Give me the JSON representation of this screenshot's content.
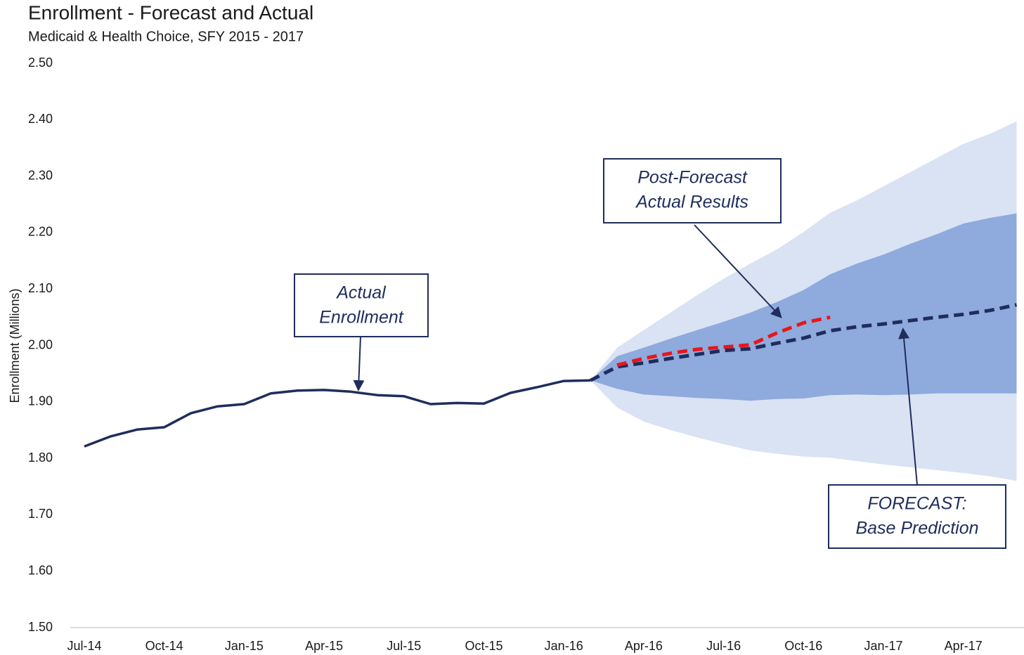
{
  "chart_data": {
    "type": "line",
    "title": "Enrollment - Forecast and Actual",
    "subtitle": "Medicaid & Health Choice, SFY 2015 - 2017",
    "ylabel": "Enrollment (Millions)",
    "categories": [
      "Jul-14",
      null,
      null,
      "Oct-14",
      null,
      null,
      "Jan-15",
      null,
      null,
      "Apr-15",
      null,
      null,
      "Jul-15",
      null,
      null,
      "Oct-15",
      null,
      null,
      "Jan-16",
      null,
      null,
      "Apr-16",
      null,
      null,
      "Jul-16",
      null,
      null,
      "Oct-16",
      null,
      null,
      "Jan-17",
      null,
      null,
      "Apr-17",
      null,
      null
    ],
    "ylim": [
      1.5,
      2.5
    ],
    "yticks": [
      {
        "value": 1.5,
        "label": "1.50"
      },
      {
        "value": 1.6,
        "label": "1.60"
      },
      {
        "value": 1.7,
        "label": "1.70"
      },
      {
        "value": 1.8,
        "label": "1.80"
      },
      {
        "value": 1.9,
        "label": "1.90"
      },
      {
        "value": 2.0,
        "label": "2.00"
      },
      {
        "value": 2.1,
        "label": "2.10"
      },
      {
        "value": 2.2,
        "label": "2.20"
      },
      {
        "value": 2.3,
        "label": "2.30"
      },
      {
        "value": 2.4,
        "label": "2.40"
      },
      {
        "value": 2.5,
        "label": "2.50"
      }
    ],
    "grid": false,
    "bands": [
      {
        "color": "#dae3f3",
        "upper": [
          null,
          null,
          null,
          null,
          null,
          null,
          null,
          null,
          null,
          null,
          null,
          null,
          null,
          null,
          null,
          null,
          null,
          null,
          null,
          1.938,
          1.996,
          2.027,
          2.058,
          2.089,
          2.118,
          2.145,
          2.17,
          2.201,
          2.235,
          2.257,
          2.282,
          2.307,
          2.332,
          2.357,
          2.375,
          2.397
        ],
        "lower": [
          null,
          null,
          null,
          null,
          null,
          null,
          null,
          null,
          null,
          null,
          null,
          null,
          null,
          null,
          null,
          null,
          null,
          null,
          null,
          1.938,
          1.89,
          1.865,
          1.85,
          1.837,
          1.825,
          1.814,
          1.808,
          1.803,
          1.801,
          1.795,
          1.789,
          1.784,
          1.779,
          1.774,
          1.768,
          1.76
        ]
      },
      {
        "color": "#8faadc",
        "upper": [
          null,
          null,
          null,
          null,
          null,
          null,
          null,
          null,
          null,
          null,
          null,
          null,
          null,
          null,
          null,
          null,
          null,
          null,
          null,
          1.938,
          1.981,
          1.996,
          2.012,
          2.027,
          2.042,
          2.058,
          2.077,
          2.098,
          2.126,
          2.145,
          2.161,
          2.18,
          2.197,
          2.216,
          2.226,
          2.234
        ],
        "lower": [
          null,
          null,
          null,
          null,
          null,
          null,
          null,
          null,
          null,
          null,
          null,
          null,
          null,
          null,
          null,
          null,
          null,
          null,
          null,
          1.938,
          1.923,
          1.913,
          1.91,
          1.907,
          1.905,
          1.902,
          1.905,
          1.906,
          1.912,
          1.913,
          1.912,
          1.913,
          1.915,
          1.915,
          1.915,
          1.915
        ]
      }
    ],
    "series": [
      {
        "color": "#1f2d5c",
        "dashed": false,
        "values": [
          1.821,
          1.839,
          1.851,
          1.855,
          1.88,
          1.892,
          1.896,
          1.915,
          1.92,
          1.921,
          1.918,
          1.912,
          1.91,
          1.896,
          1.898,
          1.897,
          1.916,
          1.926,
          1.937,
          1.938,
          null,
          null,
          null,
          null,
          null,
          null,
          null,
          null,
          null,
          null,
          null,
          null,
          null,
          null,
          null,
          null
        ]
      },
      {
        "color": "#1f2d5c",
        "dashed": true,
        "values": [
          null,
          null,
          null,
          null,
          null,
          null,
          null,
          null,
          null,
          null,
          null,
          null,
          null,
          null,
          null,
          null,
          null,
          null,
          null,
          1.938,
          1.962,
          1.969,
          1.977,
          1.984,
          1.991,
          1.994,
          2.004,
          2.013,
          2.026,
          2.033,
          2.038,
          2.044,
          2.05,
          2.055,
          2.062,
          2.072
        ]
      },
      {
        "color": "#e8161b",
        "dashed": true,
        "values": [
          null,
          null,
          null,
          null,
          null,
          null,
          null,
          null,
          null,
          null,
          null,
          null,
          null,
          null,
          null,
          null,
          null,
          null,
          null,
          null,
          1.965,
          1.977,
          1.986,
          1.993,
          1.997,
          2.001,
          2.022,
          2.04,
          2.05,
          null,
          null,
          null,
          null,
          null,
          null,
          null
        ]
      }
    ],
    "annotations": [
      {
        "lines": [
          "Actual",
          "Enrollment"
        ]
      },
      {
        "lines": [
          "Post-Forecast",
          "Actual Results"
        ]
      },
      {
        "lines": [
          "FORECAST:",
          "Base Prediction"
        ]
      }
    ]
  }
}
